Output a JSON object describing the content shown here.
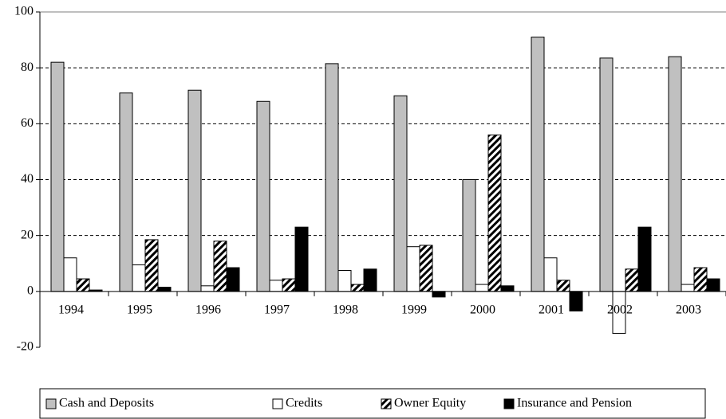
{
  "chart_data": {
    "type": "bar",
    "categories": [
      "1994",
      "1995",
      "1996",
      "1997",
      "1998",
      "1999",
      "2000",
      "2001",
      "2002",
      "2003"
    ],
    "series": [
      {
        "name": "Cash and Deposits",
        "color": "#c0c0c0",
        "values": [
          82,
          71,
          72,
          68,
          81.5,
          70,
          40,
          91,
          83.5,
          84
        ]
      },
      {
        "name": "Credits",
        "color": "#ffffff",
        "values": [
          12,
          9.5,
          2,
          4,
          7.5,
          16,
          2.5,
          12,
          -15,
          2.5
        ]
      },
      {
        "name": "Owner Equity",
        "color": "#ffffff",
        "pattern": "diagonal",
        "values": [
          4.5,
          18.5,
          18,
          4.5,
          2.5,
          16.5,
          56,
          4,
          8,
          8.5
        ]
      },
      {
        "name": "Insurance and Pension",
        "color": "#000000",
        "values": [
          0.5,
          1.5,
          8.5,
          23,
          8,
          -2,
          2,
          -7,
          23,
          4.5
        ]
      }
    ],
    "ylim": [
      -20,
      100
    ],
    "yticks": [
      -20,
      0,
      20,
      40,
      60,
      80,
      100
    ],
    "grid": true,
    "legend": "bottom"
  }
}
